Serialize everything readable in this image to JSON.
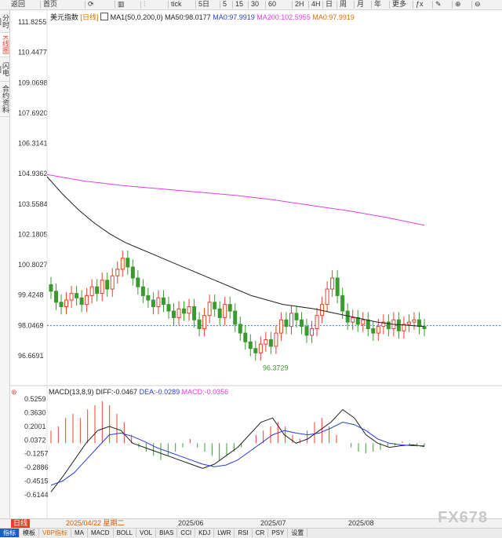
{
  "toolbar": {
    "items": [
      "返回",
      "首页",
      "",
      "",
      "",
      "tick",
      "5日",
      "5",
      "15",
      "30",
      "60",
      "2H",
      "4H",
      "日",
      "周",
      "月",
      "年",
      "更多",
      "ƒx",
      "",
      "",
      ""
    ]
  },
  "sidebar": {
    "items": [
      "分时图",
      "K线图",
      "闪电图",
      "合约资料"
    ]
  },
  "main_info": {
    "symbol": "美元指数",
    "period": "[日线]",
    "ma1": "MA1(50,0,200,0)",
    "ma50": "MA50:98.0177",
    "ma0a": "MA0:97.9919",
    "ma200": "MA200:102.5955",
    "ma0b": "MA0:97.9919"
  },
  "price_axis": [
    "111.8255",
    "110.4477",
    "109.0698",
    "107.6920",
    "106.3141",
    "104.9362",
    "103.5584",
    "102.1805",
    "100.8027",
    "99.4248",
    "98.0469",
    "96.6691"
  ],
  "price_low_label": "96.3729",
  "macd_info": {
    "title": "MACD(13,8,9)",
    "diff": "DIFF:-0.0467",
    "dea": "DEA:-0.0289",
    "macd": "MACD:-0.0356"
  },
  "macd_axis": [
    "0.5259",
    "0.3630",
    "0.2001",
    "0.0372",
    "-0.1257",
    "-0.2886",
    "-0.4515",
    "-0.6144"
  ],
  "time_axis": {
    "cursor_date": "2025/04/22 星期二",
    "months": [
      "2025/06",
      "2025/07",
      "2025/08"
    ]
  },
  "bottom_tabs": [
    "日线",
    "指标",
    "模板",
    "VBP指标",
    "MA",
    "MACD",
    "BOLL",
    "VOL",
    "BIAS",
    "CCI",
    "KDJ",
    "LWR",
    "RSI",
    "CR",
    "PSY",
    "设置"
  ],
  "watermark": "FX678",
  "colors": {
    "up": "#e8412b",
    "down": "#3a9a2f",
    "ma50": "#222222",
    "ma200": "#e040e0",
    "diff": "#222222",
    "dea": "#2a3fd0",
    "ref_line": "#3b7fd8"
  },
  "chart_data": {
    "type": "candlestick",
    "series_name": "美元指数",
    "ohlc_approx_close": [
      99.6,
      99.1,
      98.9,
      99.2,
      99.5,
      99.3,
      99.0,
      99.4,
      99.8,
      99.5,
      100.1,
      99.7,
      100.3,
      100.6,
      101.1,
      100.7,
      100.2,
      99.8,
      99.4,
      99.2,
      98.9,
      99.3,
      99.0,
      98.7,
      98.4,
      98.8,
      98.6,
      98.9,
      98.3,
      97.9,
      98.5,
      99.1,
      98.8,
      98.4,
      99.0,
      98.7,
      98.1,
      97.7,
      97.3,
      97.0,
      96.8,
      97.2,
      97.4,
      97.1,
      97.7,
      98.3,
      98.0,
      98.6,
      98.3,
      98.0,
      97.6,
      97.9,
      98.5,
      99.0,
      99.7,
      100.2,
      99.4,
      98.7,
      98.2,
      98.4,
      98.1,
      98.3,
      97.9,
      97.7,
      98.0,
      98.2,
      97.9,
      98.3,
      97.8,
      98.1,
      98.2,
      98.3,
      98.0,
      97.9
    ]
  }
}
